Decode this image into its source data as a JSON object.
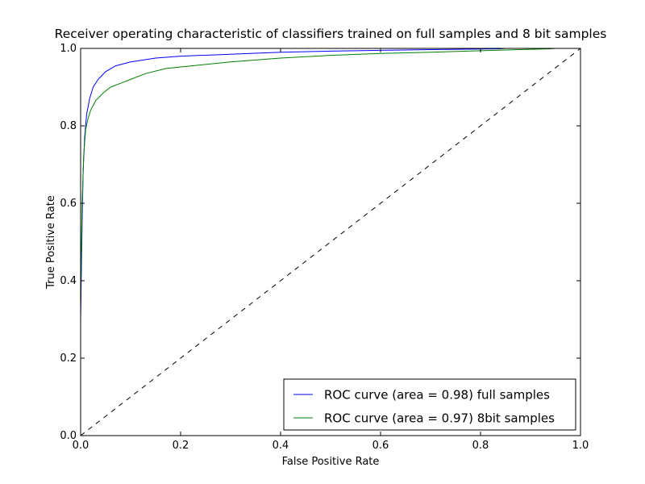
{
  "chart_data": {
    "type": "line",
    "title": "Receiver operating characteristic of classifiers trained on full samples and 8 bit samples",
    "xlabel": "False Positive Rate",
    "ylabel": "True Positive Rate",
    "xlim": [
      0.0,
      1.0
    ],
    "ylim": [
      0.0,
      1.0
    ],
    "xticks": [
      "0.0",
      "0.2",
      "0.4",
      "0.6",
      "0.8",
      "1.0"
    ],
    "yticks": [
      "0.0",
      "0.2",
      "0.4",
      "0.6",
      "0.8",
      "1.0"
    ],
    "grid": false,
    "legend_position": "lower-right",
    "series": [
      {
        "name": "ROC curve (area = 0.98) full samples",
        "color": "#0000ff",
        "x": [
          0.0,
          0.0,
          0.003,
          0.005,
          0.008,
          0.012,
          0.018,
          0.025,
          0.035,
          0.05,
          0.07,
          0.1,
          0.15,
          0.2,
          0.3,
          0.4,
          0.5,
          0.6,
          0.7,
          0.84,
          0.85,
          1.0
        ],
        "y": [
          0.0,
          0.3,
          0.55,
          0.68,
          0.77,
          0.83,
          0.87,
          0.9,
          0.92,
          0.94,
          0.955,
          0.965,
          0.975,
          0.98,
          0.985,
          0.99,
          0.993,
          0.995,
          0.997,
          0.999,
          1.0,
          1.0
        ]
      },
      {
        "name": "ROC curve (area = 0.97) 8bit samples",
        "color": "#008000",
        "x": [
          0.0,
          0.0,
          0.003,
          0.006,
          0.01,
          0.015,
          0.02,
          0.03,
          0.045,
          0.06,
          0.08,
          0.1,
          0.13,
          0.17,
          0.2,
          0.3,
          0.4,
          0.5,
          0.6,
          0.7,
          0.8,
          0.94,
          0.95,
          1.0
        ],
        "y": [
          0.0,
          0.35,
          0.6,
          0.72,
          0.79,
          0.82,
          0.84,
          0.865,
          0.885,
          0.9,
          0.91,
          0.92,
          0.935,
          0.948,
          0.952,
          0.965,
          0.975,
          0.982,
          0.987,
          0.99,
          0.994,
          0.999,
          1.0,
          1.0
        ]
      },
      {
        "name": "",
        "color": "#000000",
        "dashed": true,
        "x": [
          0.0,
          1.0
        ],
        "y": [
          0.0,
          1.0
        ]
      }
    ]
  }
}
